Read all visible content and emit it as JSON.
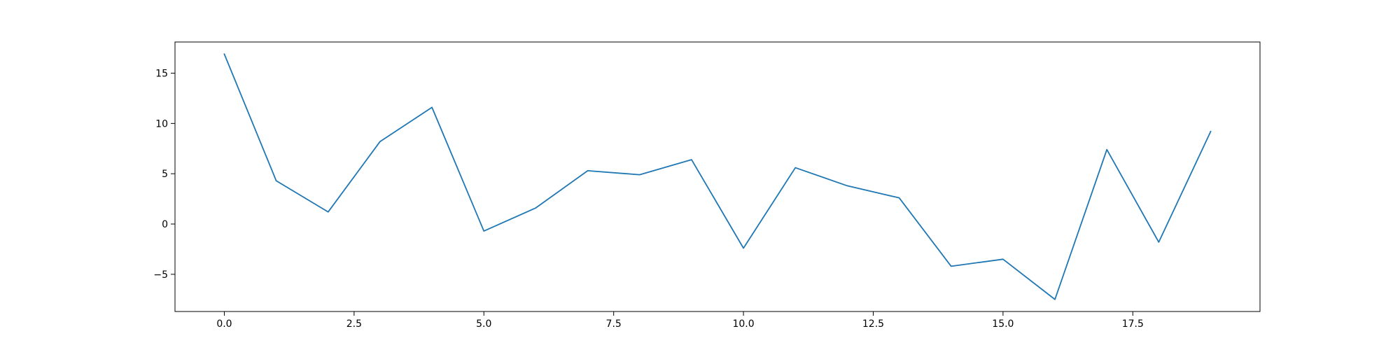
{
  "chart_data": {
    "type": "line",
    "title": "",
    "xlabel": "",
    "ylabel": "",
    "xlim": [
      -0.95,
      19.95
    ],
    "ylim": [
      -8.7,
      18.1
    ],
    "xticks": [
      0.0,
      2.5,
      5.0,
      7.5,
      10.0,
      12.5,
      15.0,
      17.5
    ],
    "xtick_labels": [
      "0.0",
      "2.5",
      "5.0",
      "7.5",
      "10.0",
      "12.5",
      "15.0",
      "17.5"
    ],
    "yticks": [
      -5,
      0,
      5,
      10,
      15
    ],
    "ytick_labels": [
      "−5",
      "0",
      "5",
      "10",
      "15"
    ],
    "grid": false,
    "legend": "none",
    "series": [
      {
        "color": "#1f77b4",
        "x": [
          0,
          1,
          2,
          3,
          4,
          5,
          6,
          7,
          8,
          9,
          10,
          11,
          12,
          13,
          14,
          15,
          16,
          17,
          18,
          19
        ],
        "values": [
          16.9,
          4.3,
          1.2,
          8.2,
          11.6,
          -0.7,
          1.6,
          5.3,
          4.9,
          6.4,
          -2.4,
          5.6,
          3.8,
          2.6,
          -4.2,
          -3.5,
          -7.5,
          7.4,
          -1.8,
          9.2
        ]
      }
    ]
  }
}
